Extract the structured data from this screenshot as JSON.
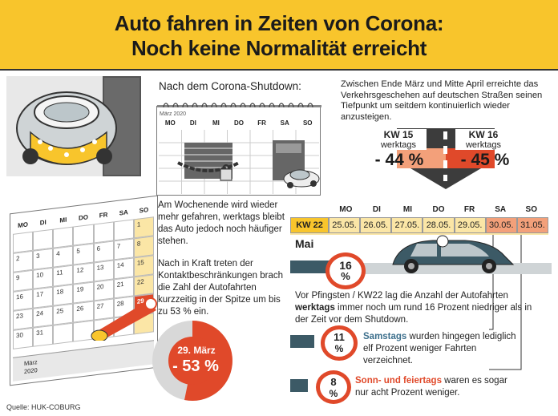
{
  "header": {
    "title_line1": "Auto fahren in Zeiten von Corona:",
    "title_line2": "Noch keine Normalität erreicht",
    "background": "#f8c52c"
  },
  "shutdown": {
    "heading": "Nach dem Corona-Shutdown:",
    "calendar_month": "März 2020",
    "weekdays": [
      "MO",
      "DI",
      "MI",
      "DO",
      "FR",
      "SA",
      "SO"
    ],
    "caption": "Am Wochenende wird wieder mehr gefahren, werktags bleibt das Auto jedoch noch häufiger stehen."
  },
  "intro_text": "Zwischen Ende März und Mitte April erreichte das Verkehrsgeschehen auf deutschen Straßen seinen Tiefpunkt um seitdem kontinuierlich wieder anzusteigen.",
  "kw15": {
    "label": "KW 15",
    "sub": "werktags",
    "value": "- 44 %"
  },
  "kw16": {
    "label": "KW 16",
    "sub": "werktags",
    "value": "- 45 %"
  },
  "left_calendar": {
    "weekdays": [
      "MO",
      "DI",
      "MI",
      "DO",
      "FR",
      "SA",
      "SO"
    ],
    "rows": [
      [
        "",
        "",
        "",
        "",
        "",
        "",
        "1"
      ],
      [
        "2",
        "3",
        "4",
        "5",
        "6",
        "7",
        "8"
      ],
      [
        "9",
        "10",
        "11",
        "12",
        "13",
        "14",
        "15"
      ],
      [
        "16",
        "17",
        "18",
        "19",
        "20",
        "21",
        "22"
      ],
      [
        "23",
        "24",
        "25",
        "26",
        "27",
        "28",
        "29"
      ],
      [
        "30",
        "31",
        "",
        "",
        "",
        "",
        ""
      ]
    ],
    "footer_month": "März",
    "footer_year": "2020"
  },
  "kontakt_text": "Nach in Kraft treten der Kontaktbeschränkungen brach die Zahl der Autofahrten kurzzeitig in der Spitze um bis zu 53 % ein.",
  "march29": {
    "date": "29. März",
    "value": "- 53 %",
    "color": "#e0492a"
  },
  "kw22": {
    "label": "KW 22",
    "month": "Mai",
    "weekdays": [
      "MO",
      "DI",
      "MI",
      "DO",
      "FR",
      "SA",
      "SO"
    ],
    "dates": [
      "25.05.",
      "26.05.",
      "27.05.",
      "28.05.",
      "29.05.",
      "30.05.",
      "31.05."
    ]
  },
  "stat_werktags": {
    "value": "16",
    "unit": "%",
    "text_before": "Vor Pfingsten / KW22 lag die Anzahl der Autofahrten ",
    "text_bold": "werktags",
    "text_after": " immer noch um rund 16 Prozent niedriger als in der Zeit vor dem Shutdown."
  },
  "stat_samstags": {
    "value": "11",
    "unit": "%",
    "text_bold": "Samstags",
    "text_after": " wurden hingegen lediglich elf Prozent weniger Fahrten verzeichnet.",
    "bold_color": "#3c6f8c"
  },
  "stat_sonntags": {
    "value": "8",
    "unit": "%",
    "text_bold": "Sonn- und feiertags",
    "text_after": " waren es sogar nur acht Prozent weniger.",
    "bold_color": "#e0492a"
  },
  "source": "Quelle: HUK-COBURG",
  "colors": {
    "accent": "#e0492a",
    "dark": "#3c5a66",
    "yellow": "#f8c52c",
    "peach": "#f3a07a"
  }
}
